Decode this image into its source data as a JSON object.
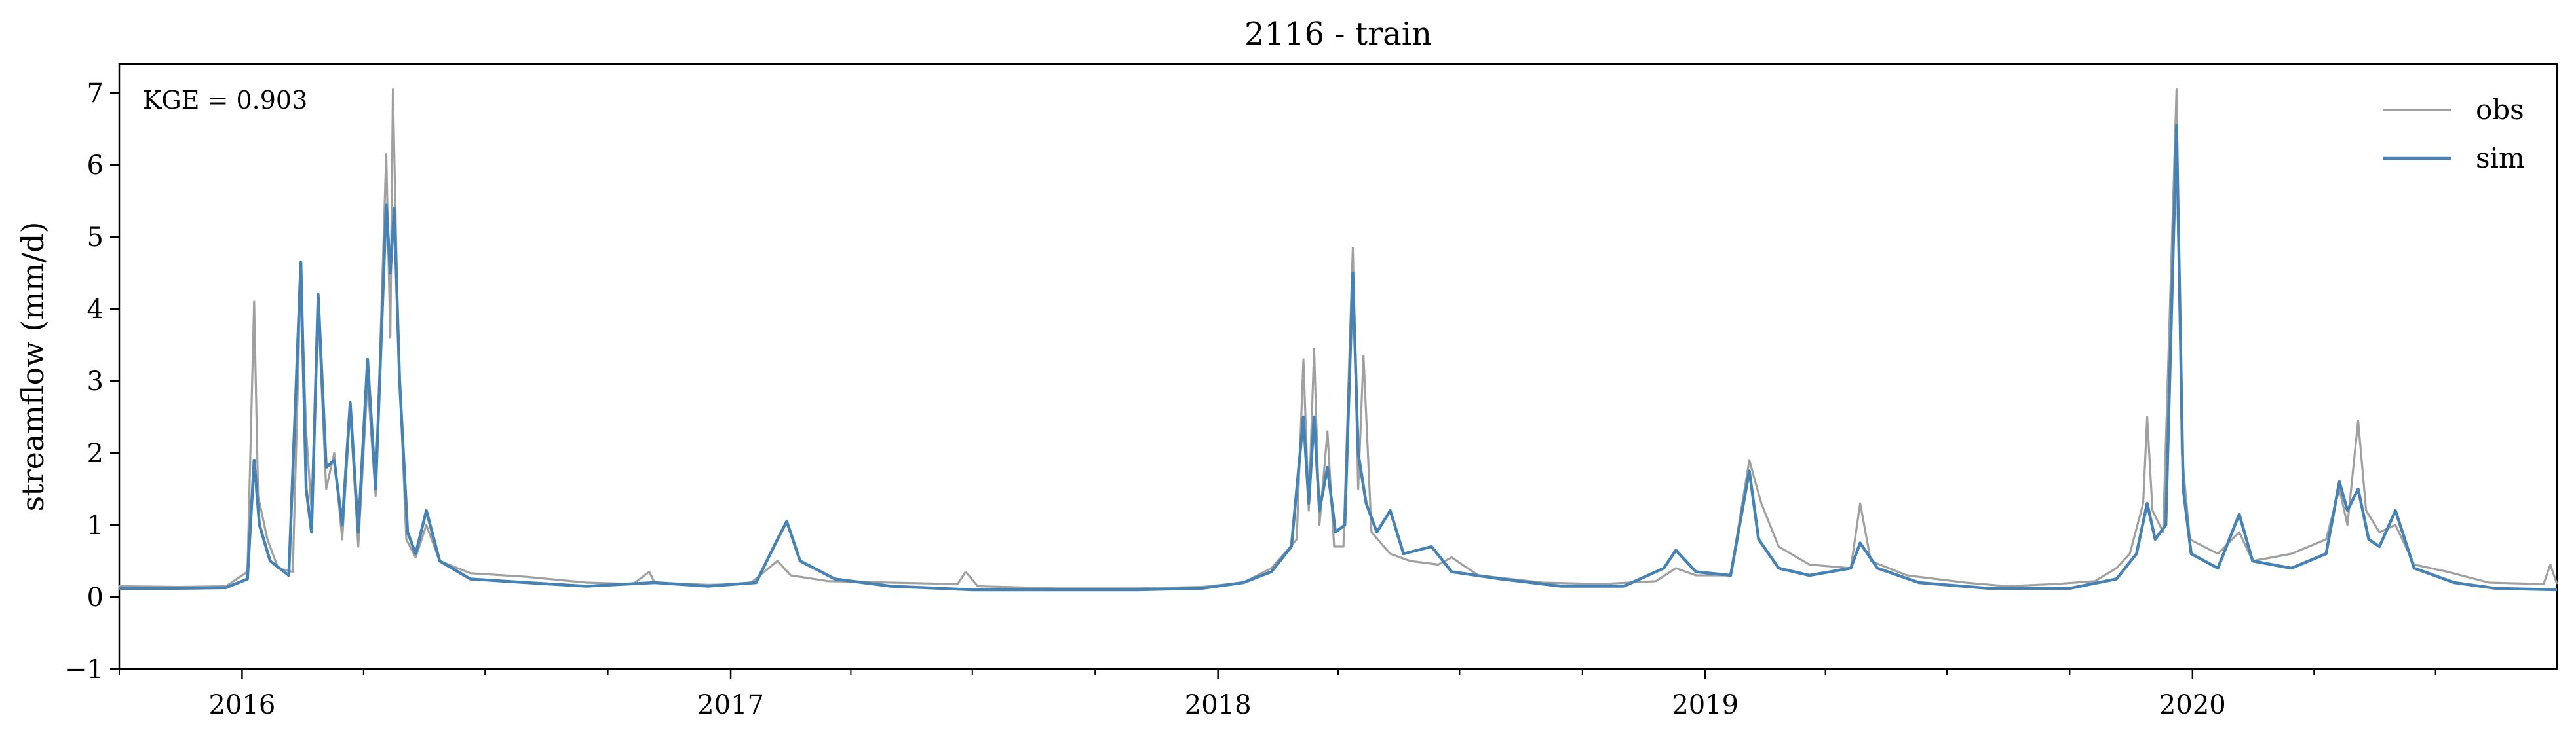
{
  "chart_data": {
    "type": "line",
    "title": "2116 - train",
    "xlabel": "",
    "ylabel": "streamflow (mm/d)",
    "x_range": [
      "2015-10-01",
      "2020-09-30"
    ],
    "ylim": [
      -1,
      7.4
    ],
    "y_ticks": [
      -1,
      0,
      1,
      2,
      3,
      4,
      5,
      6,
      7
    ],
    "y_tick_labels": [
      "−1",
      "0",
      "1",
      "2",
      "3",
      "4",
      "5",
      "6",
      "7"
    ],
    "x_ticks": [
      {
        "date": "2016-01-01",
        "label": "2016"
      },
      {
        "date": "2017-01-01",
        "label": "2017"
      },
      {
        "date": "2018-01-01",
        "label": "2018"
      },
      {
        "date": "2019-01-01",
        "label": "2019"
      },
      {
        "date": "2020-01-01",
        "label": "2020"
      }
    ],
    "grid": false,
    "legend_position": "top-right",
    "annotation": "KGE = 0.903",
    "series": [
      {
        "name": "obs",
        "color": "#a0a0a0",
        "points": [
          [
            "2015-10-01",
            0.15
          ],
          [
            "2015-11-15",
            0.14
          ],
          [
            "2015-12-20",
            0.15
          ],
          [
            "2016-01-05",
            0.35
          ],
          [
            "2016-01-10",
            4.1
          ],
          [
            "2016-01-13",
            1.4
          ],
          [
            "2016-01-20",
            0.8
          ],
          [
            "2016-01-28",
            0.4
          ],
          [
            "2016-02-08",
            0.35
          ],
          [
            "2016-02-14",
            4.5
          ],
          [
            "2016-02-18",
            2.3
          ],
          [
            "2016-02-22",
            1.2
          ],
          [
            "2016-02-27",
            4.0
          ],
          [
            "2016-03-04",
            1.5
          ],
          [
            "2016-03-10",
            2.0
          ],
          [
            "2016-03-16",
            0.8
          ],
          [
            "2016-03-22",
            2.6
          ],
          [
            "2016-03-28",
            0.7
          ],
          [
            "2016-04-04",
            3.0
          ],
          [
            "2016-04-10",
            1.4
          ],
          [
            "2016-04-18",
            6.15
          ],
          [
            "2016-04-21",
            3.6
          ],
          [
            "2016-04-23",
            7.05
          ],
          [
            "2016-04-27",
            3.5
          ],
          [
            "2016-05-03",
            0.8
          ],
          [
            "2016-05-10",
            0.55
          ],
          [
            "2016-05-18",
            1.0
          ],
          [
            "2016-05-28",
            0.5
          ],
          [
            "2016-06-20",
            0.33
          ],
          [
            "2016-08-01",
            0.28
          ],
          [
            "2016-09-15",
            0.2
          ],
          [
            "2016-10-20",
            0.18
          ],
          [
            "2016-11-01",
            0.35
          ],
          [
            "2016-11-05",
            0.2
          ],
          [
            "2016-12-15",
            0.17
          ],
          [
            "2017-01-15",
            0.18
          ],
          [
            "2017-02-05",
            0.5
          ],
          [
            "2017-02-15",
            0.3
          ],
          [
            "2017-03-15",
            0.22
          ],
          [
            "2017-05-01",
            0.2
          ],
          [
            "2017-06-20",
            0.18
          ],
          [
            "2017-06-26",
            0.35
          ],
          [
            "2017-07-05",
            0.15
          ],
          [
            "2017-09-01",
            0.12
          ],
          [
            "2017-11-01",
            0.12
          ],
          [
            "2017-12-20",
            0.14
          ],
          [
            "2018-01-20",
            0.2
          ],
          [
            "2018-02-10",
            0.4
          ],
          [
            "2018-03-01",
            0.8
          ],
          [
            "2018-03-06",
            3.3
          ],
          [
            "2018-03-10",
            1.2
          ],
          [
            "2018-03-14",
            3.45
          ],
          [
            "2018-03-18",
            1.0
          ],
          [
            "2018-03-24",
            2.3
          ],
          [
            "2018-03-29",
            0.7
          ],
          [
            "2018-04-05",
            0.7
          ],
          [
            "2018-04-12",
            4.85
          ],
          [
            "2018-04-16",
            1.5
          ],
          [
            "2018-04-20",
            3.35
          ],
          [
            "2018-04-26",
            0.9
          ],
          [
            "2018-05-10",
            0.6
          ],
          [
            "2018-05-25",
            0.5
          ],
          [
            "2018-06-15",
            0.45
          ],
          [
            "2018-06-25",
            0.55
          ],
          [
            "2018-07-15",
            0.3
          ],
          [
            "2018-09-01",
            0.2
          ],
          [
            "2018-10-15",
            0.18
          ],
          [
            "2018-11-25",
            0.22
          ],
          [
            "2018-12-10",
            0.4
          ],
          [
            "2018-12-25",
            0.3
          ],
          [
            "2019-01-20",
            0.3
          ],
          [
            "2019-02-03",
            1.9
          ],
          [
            "2019-02-12",
            1.3
          ],
          [
            "2019-02-25",
            0.7
          ],
          [
            "2019-03-20",
            0.45
          ],
          [
            "2019-04-20",
            0.4
          ],
          [
            "2019-04-27",
            1.3
          ],
          [
            "2019-05-05",
            0.5
          ],
          [
            "2019-06-01",
            0.3
          ],
          [
            "2019-07-15",
            0.2
          ],
          [
            "2019-08-15",
            0.15
          ],
          [
            "2019-09-20",
            0.18
          ],
          [
            "2019-10-20",
            0.22
          ],
          [
            "2019-11-05",
            0.4
          ],
          [
            "2019-11-15",
            0.6
          ],
          [
            "2019-11-25",
            1.3
          ],
          [
            "2019-11-28",
            2.5
          ],
          [
            "2019-12-02",
            1.2
          ],
          [
            "2019-12-10",
            0.9
          ],
          [
            "2019-12-20",
            7.05
          ],
          [
            "2019-12-24",
            2.0
          ],
          [
            "2019-12-30",
            0.8
          ],
          [
            "2020-01-20",
            0.6
          ],
          [
            "2020-02-05",
            0.9
          ],
          [
            "2020-02-15",
            0.5
          ],
          [
            "2020-03-15",
            0.6
          ],
          [
            "2020-04-10",
            0.8
          ],
          [
            "2020-04-20",
            1.5
          ],
          [
            "2020-04-26",
            1.0
          ],
          [
            "2020-05-04",
            2.45
          ],
          [
            "2020-05-10",
            1.2
          ],
          [
            "2020-05-20",
            0.9
          ],
          [
            "2020-06-01",
            1.0
          ],
          [
            "2020-06-15",
            0.45
          ],
          [
            "2020-07-10",
            0.35
          ],
          [
            "2020-08-10",
            0.2
          ],
          [
            "2020-09-20",
            0.18
          ],
          [
            "2020-09-25",
            0.45
          ],
          [
            "2020-09-30",
            0.18
          ]
        ]
      },
      {
        "name": "sim",
        "color": "#4682b4",
        "points": [
          [
            "2015-10-01",
            0.12
          ],
          [
            "2015-11-15",
            0.12
          ],
          [
            "2015-12-20",
            0.13
          ],
          [
            "2016-01-05",
            0.25
          ],
          [
            "2016-01-10",
            1.9
          ],
          [
            "2016-01-14",
            1.0
          ],
          [
            "2016-01-22",
            0.5
          ],
          [
            "2016-02-05",
            0.3
          ],
          [
            "2016-02-14",
            4.65
          ],
          [
            "2016-02-18",
            1.5
          ],
          [
            "2016-02-22",
            0.9
          ],
          [
            "2016-02-27",
            4.2
          ],
          [
            "2016-03-04",
            1.8
          ],
          [
            "2016-03-10",
            1.9
          ],
          [
            "2016-03-16",
            1.0
          ],
          [
            "2016-03-22",
            2.7
          ],
          [
            "2016-03-28",
            0.9
          ],
          [
            "2016-04-04",
            3.3
          ],
          [
            "2016-04-10",
            1.5
          ],
          [
            "2016-04-18",
            5.45
          ],
          [
            "2016-04-21",
            4.5
          ],
          [
            "2016-04-24",
            5.4
          ],
          [
            "2016-04-28",
            3.0
          ],
          [
            "2016-05-04",
            0.9
          ],
          [
            "2016-05-10",
            0.6
          ],
          [
            "2016-05-18",
            1.2
          ],
          [
            "2016-05-28",
            0.5
          ],
          [
            "2016-06-20",
            0.25
          ],
          [
            "2016-08-01",
            0.2
          ],
          [
            "2016-09-15",
            0.15
          ],
          [
            "2016-11-05",
            0.2
          ],
          [
            "2016-12-15",
            0.15
          ],
          [
            "2017-01-20",
            0.2
          ],
          [
            "2017-02-05",
            0.8
          ],
          [
            "2017-02-12",
            1.05
          ],
          [
            "2017-02-22",
            0.5
          ],
          [
            "2017-03-20",
            0.25
          ],
          [
            "2017-05-01",
            0.15
          ],
          [
            "2017-07-01",
            0.1
          ],
          [
            "2017-09-01",
            0.1
          ],
          [
            "2017-11-01",
            0.1
          ],
          [
            "2017-12-20",
            0.12
          ],
          [
            "2018-01-20",
            0.2
          ],
          [
            "2018-02-10",
            0.35
          ],
          [
            "2018-02-25",
            0.7
          ],
          [
            "2018-03-06",
            2.5
          ],
          [
            "2018-03-10",
            1.3
          ],
          [
            "2018-03-14",
            2.5
          ],
          [
            "2018-03-18",
            1.2
          ],
          [
            "2018-03-24",
            1.8
          ],
          [
            "2018-03-30",
            0.9
          ],
          [
            "2018-04-06",
            1.0
          ],
          [
            "2018-04-12",
            4.5
          ],
          [
            "2018-04-16",
            2.0
          ],
          [
            "2018-04-22",
            1.3
          ],
          [
            "2018-04-30",
            0.9
          ],
          [
            "2018-05-10",
            1.2
          ],
          [
            "2018-05-20",
            0.6
          ],
          [
            "2018-06-10",
            0.7
          ],
          [
            "2018-06-25",
            0.35
          ],
          [
            "2018-08-01",
            0.25
          ],
          [
            "2018-09-15",
            0.15
          ],
          [
            "2018-11-01",
            0.15
          ],
          [
            "2018-12-01",
            0.4
          ],
          [
            "2018-12-10",
            0.65
          ],
          [
            "2018-12-25",
            0.35
          ],
          [
            "2019-01-20",
            0.3
          ],
          [
            "2019-02-03",
            1.75
          ],
          [
            "2019-02-10",
            0.8
          ],
          [
            "2019-02-25",
            0.4
          ],
          [
            "2019-03-20",
            0.3
          ],
          [
            "2019-04-20",
            0.4
          ],
          [
            "2019-04-27",
            0.75
          ],
          [
            "2019-05-10",
            0.4
          ],
          [
            "2019-06-10",
            0.2
          ],
          [
            "2019-08-01",
            0.12
          ],
          [
            "2019-10-01",
            0.12
          ],
          [
            "2019-11-05",
            0.25
          ],
          [
            "2019-11-20",
            0.6
          ],
          [
            "2019-11-28",
            1.3
          ],
          [
            "2019-12-04",
            0.8
          ],
          [
            "2019-12-12",
            1.0
          ],
          [
            "2019-12-20",
            6.55
          ],
          [
            "2019-12-25",
            1.5
          ],
          [
            "2019-12-31",
            0.6
          ],
          [
            "2020-01-20",
            0.4
          ],
          [
            "2020-02-05",
            1.15
          ],
          [
            "2020-02-15",
            0.5
          ],
          [
            "2020-03-15",
            0.4
          ],
          [
            "2020-04-10",
            0.6
          ],
          [
            "2020-04-20",
            1.6
          ],
          [
            "2020-04-26",
            1.2
          ],
          [
            "2020-05-04",
            1.5
          ],
          [
            "2020-05-12",
            0.8
          ],
          [
            "2020-05-20",
            0.7
          ],
          [
            "2020-06-01",
            1.2
          ],
          [
            "2020-06-15",
            0.4
          ],
          [
            "2020-07-15",
            0.2
          ],
          [
            "2020-08-15",
            0.12
          ],
          [
            "2020-09-30",
            0.1
          ]
        ]
      }
    ]
  }
}
